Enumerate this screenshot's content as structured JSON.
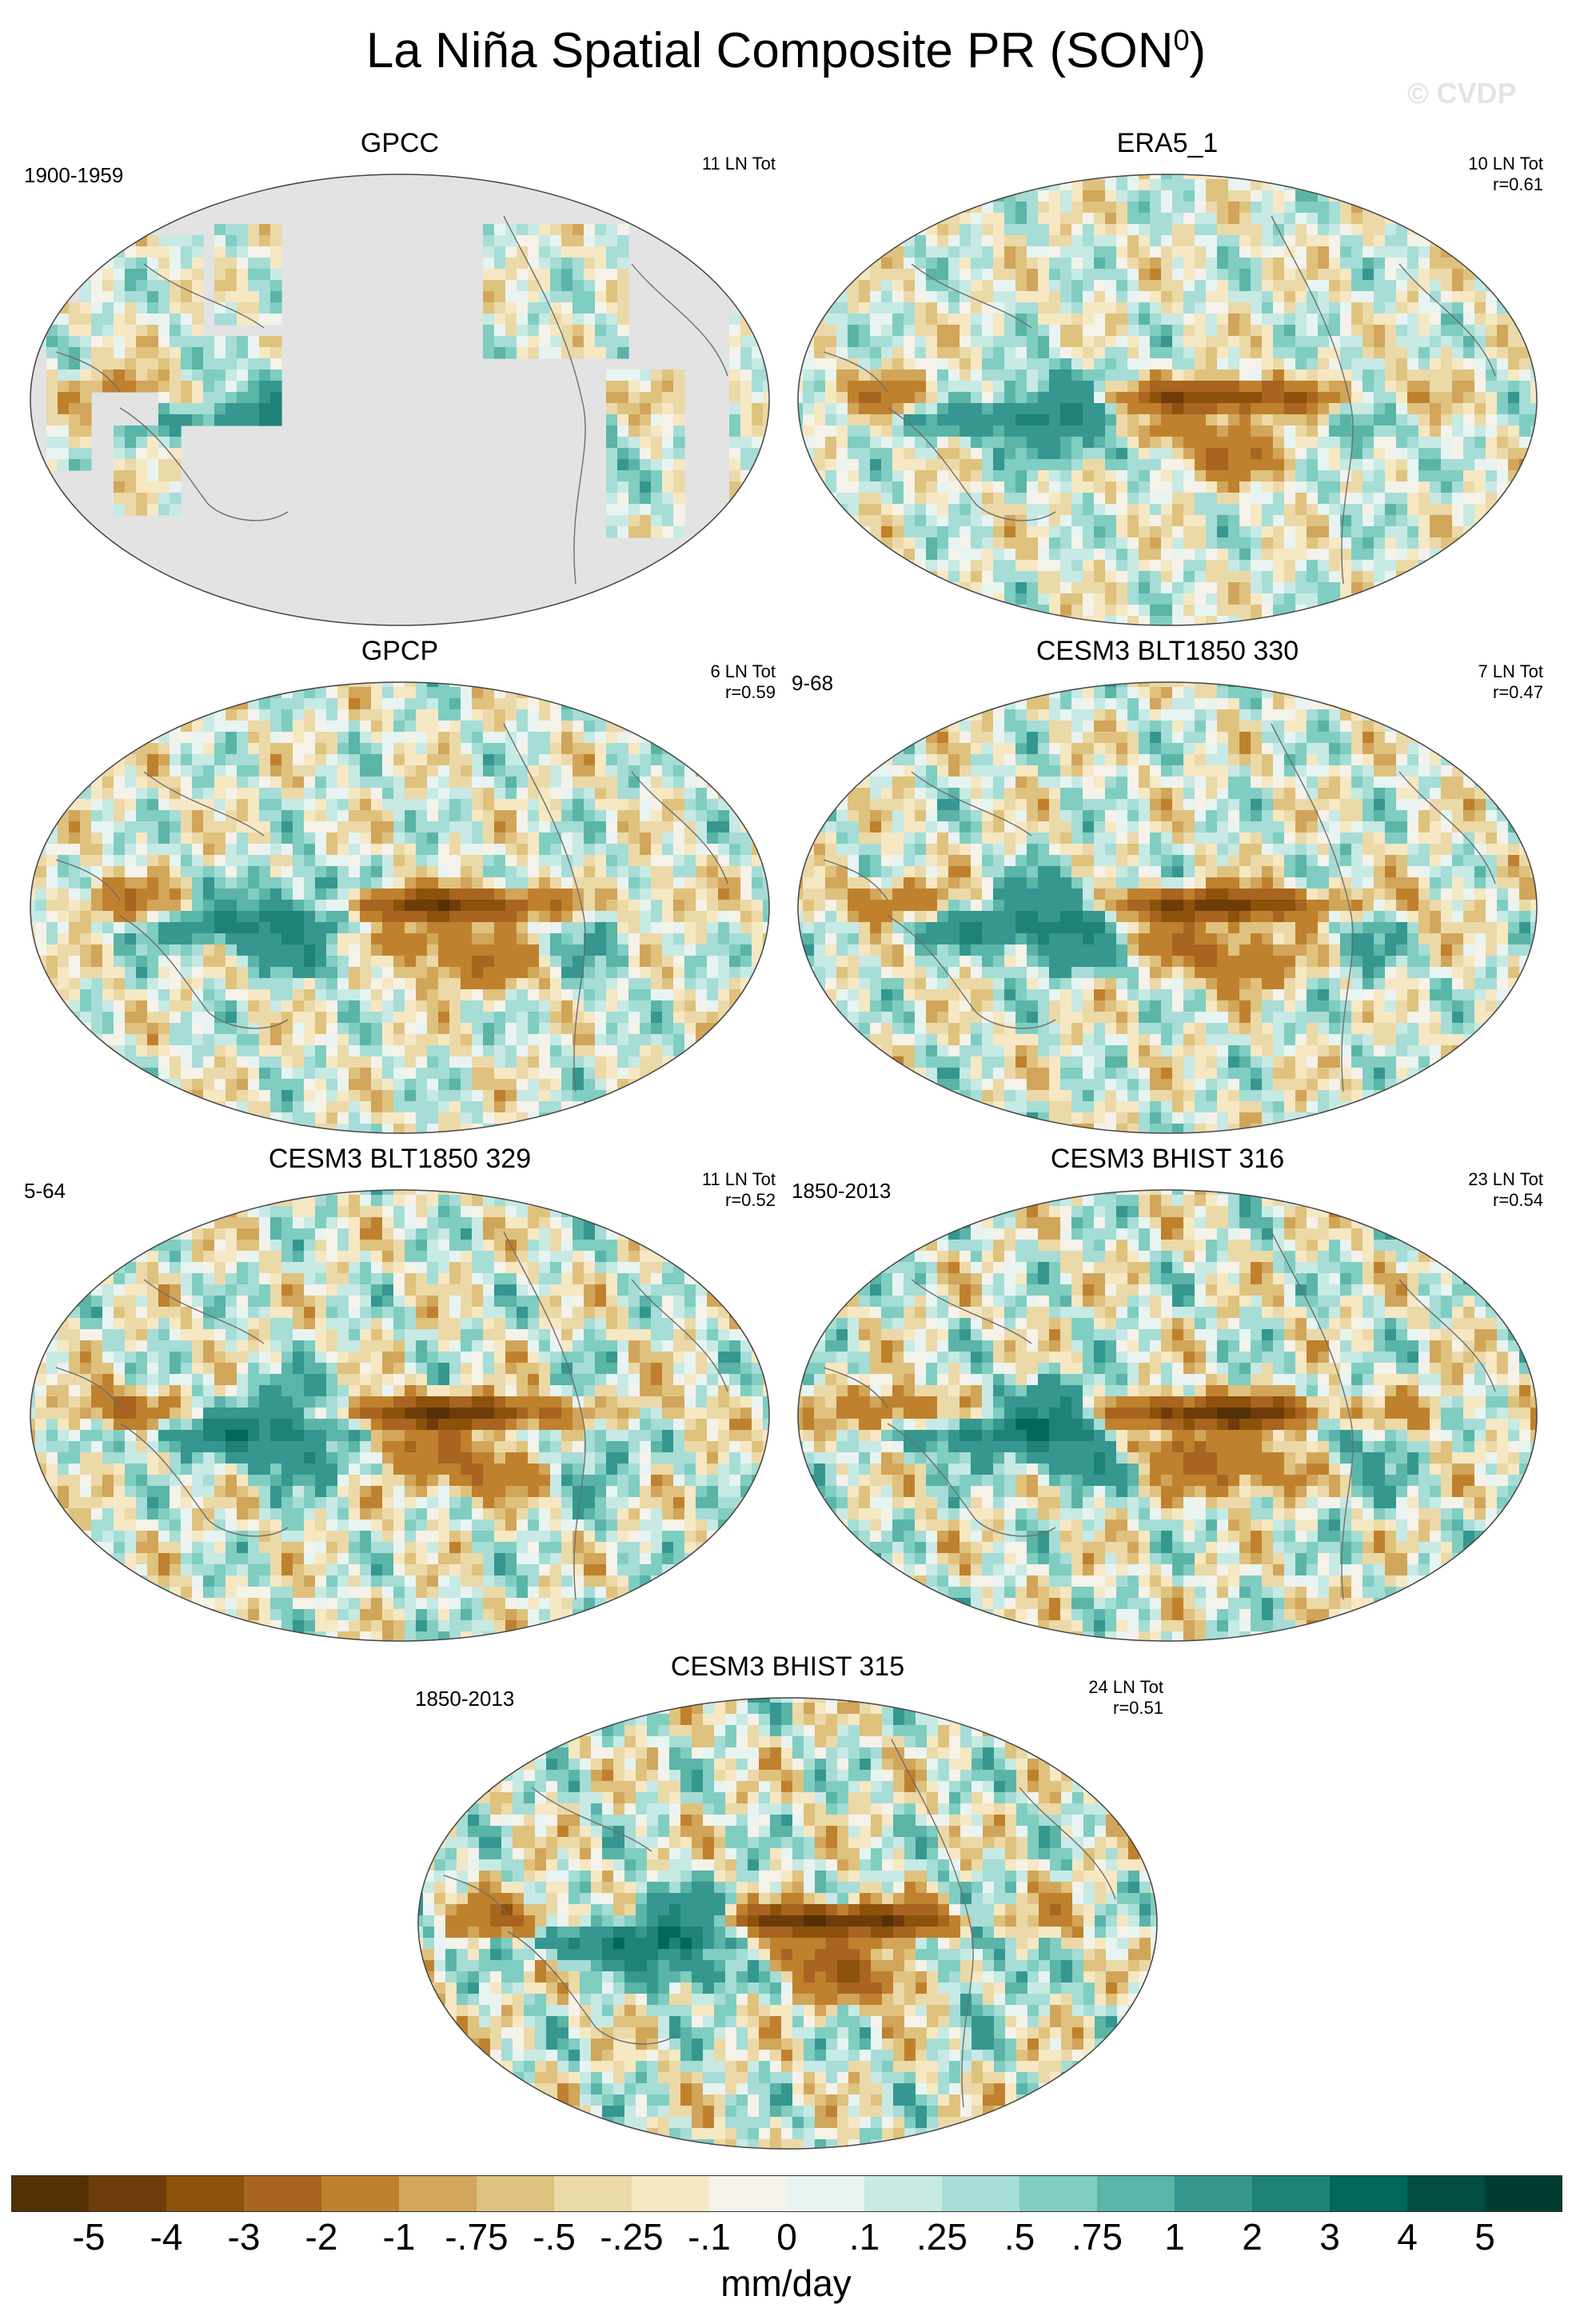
{
  "title_main": "La Niña Spatial Composite PR (SON",
  "title_sup": "0",
  "title_end": ")",
  "watermark": "© CVDP",
  "panels": [
    {
      "title": "GPCC",
      "period": "1900-1959",
      "stat1": "11 LN Tot",
      "stat2": "",
      "masked": true,
      "variant": 0
    },
    {
      "title": "ERA5_1",
      "period": "",
      "stat1": "10 LN Tot",
      "stat2": "r=0.61",
      "masked": false,
      "variant": 1
    },
    {
      "title": "GPCP",
      "period": "",
      "stat1": "6 LN Tot",
      "stat2": "r=0.59",
      "masked": false,
      "variant": 2
    },
    {
      "title": "CESM3 BLT1850 330",
      "period": "9-68",
      "stat1": "7 LN Tot",
      "stat2": "r=0.47",
      "masked": false,
      "variant": 3
    },
    {
      "title": "CESM3 BLT1850 329",
      "period": "5-64",
      "stat1": "11 LN Tot",
      "stat2": "r=0.52",
      "masked": false,
      "variant": 4
    },
    {
      "title": "CESM3 BHIST 316",
      "period": "1850-2013",
      "stat1": "23 LN Tot",
      "stat2": "r=0.54",
      "masked": false,
      "variant": 5
    },
    {
      "title": "CESM3 BHIST 315",
      "period": "1850-2013",
      "stat1": "24 LN Tot",
      "stat2": "r=0.51",
      "masked": false,
      "variant": 6
    }
  ],
  "colorbar": {
    "colors": [
      "#543005",
      "#6e3c0a",
      "#8c510a",
      "#a86420",
      "#bf812d",
      "#d1a55a",
      "#dfc27d",
      "#ecd9a8",
      "#f6e8c3",
      "#f5f2ea",
      "#e8f4f1",
      "#c7eae5",
      "#a6ddd6",
      "#80cdc1",
      "#5ab4a8",
      "#35978f",
      "#1f8277",
      "#01665e",
      "#014d44",
      "#003c30"
    ],
    "labels": [
      "-5",
      "-4",
      "-3",
      "-2",
      "-1",
      "-.75",
      "-.5",
      "-.25",
      "-.1",
      "0",
      ".1",
      ".25",
      ".5",
      ".75",
      "1",
      "2",
      "3",
      "4",
      "5"
    ]
  },
  "units": "mm/day"
}
